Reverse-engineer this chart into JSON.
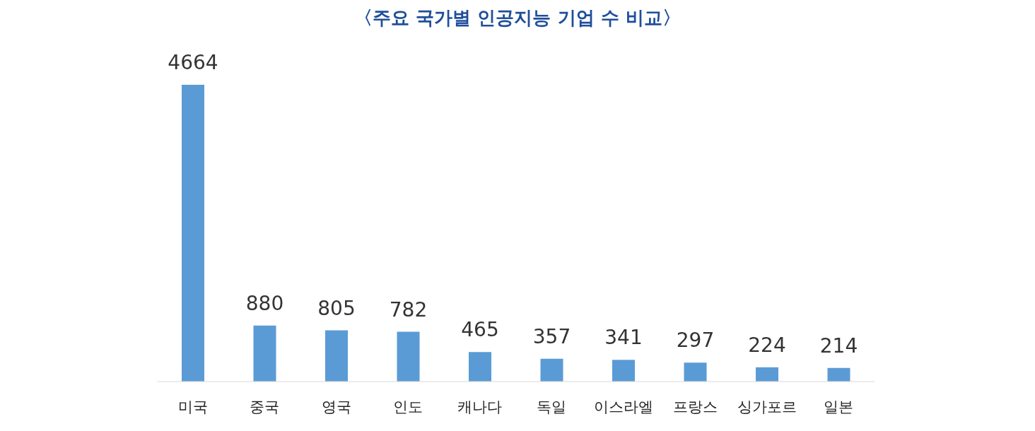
{
  "chart_data": {
    "type": "bar",
    "title": "〈주요 국가별 인공지능 기업 수 비교〉",
    "categories": [
      "미국",
      "중국",
      "영국",
      "인도",
      "캐나다",
      "독일",
      "이스라엘",
      "프랑스",
      "싱가포르",
      "일본"
    ],
    "values": [
      4664,
      880,
      805,
      782,
      465,
      357,
      341,
      297,
      224,
      214
    ],
    "color": "#5b9bd5",
    "data_labels": true
  }
}
